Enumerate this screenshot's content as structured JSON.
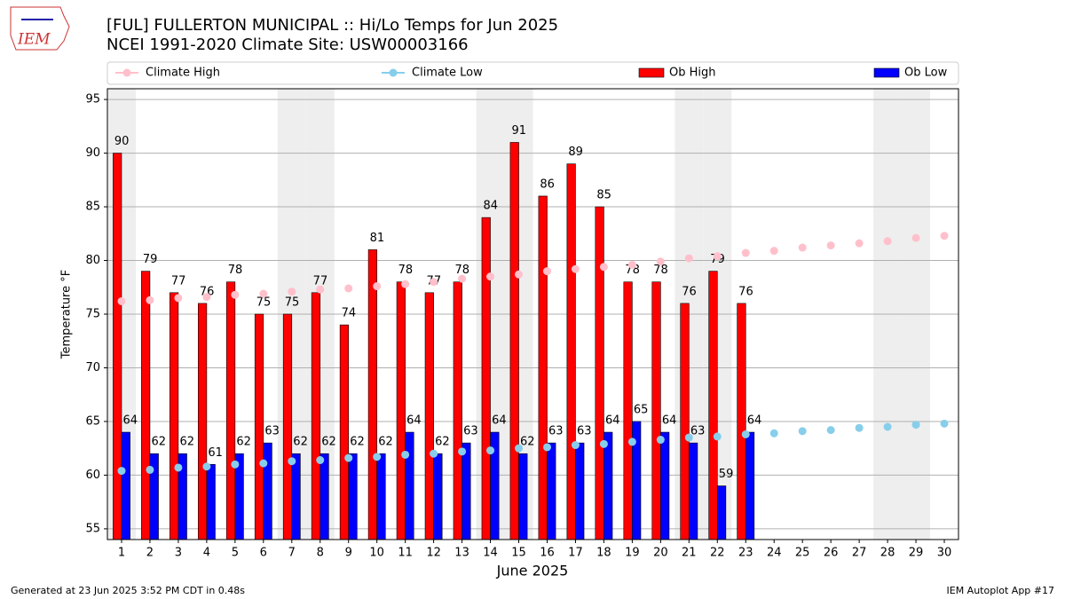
{
  "chart_data": {
    "type": "bar",
    "title": "[FUL] FULLERTON MUNICIPAL :: Hi/Lo Temps for Jun 2025",
    "subtitle": "NCEI 1991-2020 Climate Site: USW00003166",
    "logo_text": "IEM",
    "xlabel": "June 2025",
    "ylabel": "Temperature °F",
    "footer_left": "Generated at 23 Jun 2025 3:52 PM CDT in 0.48s",
    "footer_right": "IEM Autoplot App #17",
    "x": [
      1,
      2,
      3,
      4,
      5,
      6,
      7,
      8,
      9,
      10,
      11,
      12,
      13,
      14,
      15,
      16,
      17,
      18,
      19,
      20,
      21,
      22,
      23,
      24,
      25,
      26,
      27,
      28,
      29,
      30
    ],
    "xlim": [
      0.5,
      30.5
    ],
    "xticks": [
      1,
      2,
      3,
      4,
      5,
      6,
      7,
      8,
      9,
      10,
      11,
      12,
      13,
      14,
      15,
      16,
      17,
      18,
      19,
      20,
      21,
      22,
      23,
      24,
      25,
      26,
      27,
      28,
      29,
      30
    ],
    "ylim": [
      54,
      96
    ],
    "yticks": [
      55,
      60,
      65,
      70,
      75,
      80,
      85,
      90,
      95
    ],
    "grid": true,
    "shaded_days": [
      1,
      7,
      8,
      14,
      15,
      21,
      22,
      28,
      29
    ],
    "shade_color": "#eeeeee",
    "series": [
      {
        "name": "Climate High",
        "kind": "line",
        "color": "pink",
        "values": [
          76.2,
          76.3,
          76.5,
          76.6,
          76.8,
          76.9,
          77.1,
          77.3,
          77.4,
          77.6,
          77.8,
          78.0,
          78.3,
          78.5,
          78.7,
          79.0,
          79.2,
          79.4,
          79.6,
          79.9,
          80.2,
          80.4,
          80.7,
          80.9,
          81.2,
          81.4,
          81.6,
          81.8,
          82.1,
          82.3
        ]
      },
      {
        "name": "Climate Low",
        "kind": "line",
        "color": "skyblue",
        "values": [
          60.4,
          60.5,
          60.7,
          60.8,
          61.0,
          61.1,
          61.3,
          61.4,
          61.6,
          61.7,
          61.9,
          62.0,
          62.2,
          62.3,
          62.5,
          62.6,
          62.8,
          62.9,
          63.1,
          63.3,
          63.5,
          63.6,
          63.8,
          63.9,
          64.1,
          64.2,
          64.4,
          64.5,
          64.7,
          64.8
        ]
      },
      {
        "name": "Ob High",
        "kind": "bar",
        "color": "red",
        "values": [
          90,
          79,
          77,
          76,
          78,
          75,
          75,
          77,
          74,
          81,
          78,
          77,
          78,
          84,
          91,
          86,
          89,
          85,
          78,
          78,
          76,
          79,
          76,
          null,
          null,
          null,
          null,
          null,
          null,
          null
        ]
      },
      {
        "name": "Ob Low",
        "kind": "bar",
        "color": "blue",
        "values": [
          64,
          62,
          62,
          61,
          62,
          63,
          62,
          62,
          62,
          62,
          64,
          62,
          63,
          64,
          62,
          63,
          63,
          64,
          65,
          64,
          63,
          59,
          64,
          null,
          null,
          null,
          null,
          null,
          null,
          null
        ]
      }
    ]
  }
}
